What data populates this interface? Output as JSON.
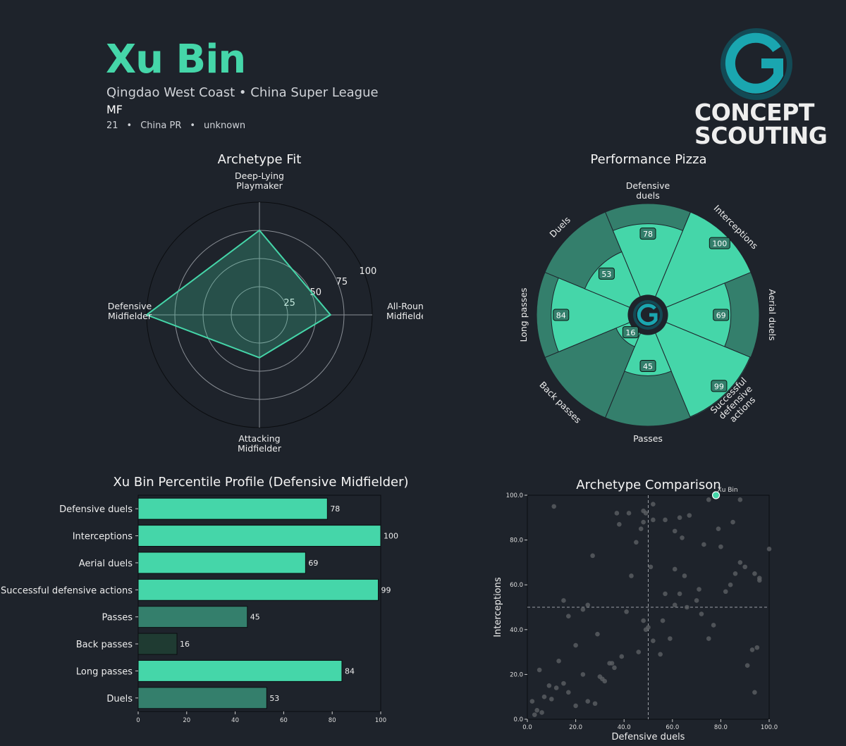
{
  "header": {
    "player_name": "Xu Bin",
    "club_league": "Qingdao West Coast • China Super League",
    "position": "MF",
    "age": "21",
    "nationality": "China PR",
    "foot": "unknown",
    "logo_line1": "CONCEPT",
    "logo_line2": "SCOUTING",
    "logo_icon": "concept-scouting-g-logo"
  },
  "colors": {
    "background": "#1e232b",
    "accent": "#45d6a9",
    "accent_dark": "#347f6c",
    "accent_darkest": "#1f3b32",
    "logo_teal": "#1aa6b0"
  },
  "chart_data": [
    {
      "type": "radar",
      "title": "Archetype Fit",
      "axes": [
        "Deep-Lying Playmaker",
        "All-Round Midfielder",
        "Attacking Midfielder",
        "Defensive Midfielder"
      ],
      "values": [
        75,
        63,
        38,
        100
      ],
      "rlim": [
        0,
        100
      ],
      "ring_ticks": [
        25,
        50,
        75,
        100
      ],
      "grid": true
    },
    {
      "type": "pie",
      "subtype": "pizza",
      "title": "Performance Pizza",
      "categories": [
        "Defensive duels",
        "Interceptions",
        "Aerial duels",
        "Successful defensive actions",
        "Passes",
        "Back passes",
        "Long passes",
        "Duels"
      ],
      "values": [
        78,
        100,
        69,
        99,
        45,
        16,
        84,
        53
      ]
    },
    {
      "type": "bar",
      "orientation": "horizontal",
      "title": "Xu Bin Percentile Profile (Defensive Midfielder)",
      "categories": [
        "Defensive duels",
        "Interceptions",
        "Aerial duels",
        "Successful defensive actions",
        "Passes",
        "Back passes",
        "Long passes",
        "Duels"
      ],
      "values": [
        78,
        100,
        69,
        99,
        45,
        16,
        84,
        53
      ],
      "xlim": [
        0,
        100
      ],
      "xticks": [
        "0",
        "20",
        "40",
        "60",
        "80",
        "100"
      ]
    },
    {
      "type": "scatter",
      "title": "Archetype Comparison",
      "xlabel": "Defensive duels",
      "ylabel": "Interceptions",
      "xlim": [
        0,
        100
      ],
      "ylim": [
        0,
        100
      ],
      "xticks": [
        "0.0",
        "20.0",
        "40.0",
        "60.0",
        "80.0",
        "100.0"
      ],
      "yticks": [
        "0.0",
        "20.0",
        "40.0",
        "60.0",
        "80.0",
        "100.0"
      ],
      "reference_lines": {
        "x": 50,
        "y": 50
      },
      "highlight": {
        "name": "Xu Bin",
        "x": 78,
        "y": 100
      },
      "points": [
        [
          11,
          95
        ],
        [
          27,
          73
        ],
        [
          37,
          92
        ],
        [
          38,
          87
        ],
        [
          42,
          92
        ],
        [
          49,
          92
        ],
        [
          48,
          88
        ],
        [
          48,
          93
        ],
        [
          52,
          96
        ],
        [
          52,
          89
        ],
        [
          57,
          89
        ],
        [
          63,
          90
        ],
        [
          61,
          84
        ],
        [
          64,
          81
        ],
        [
          67,
          91
        ],
        [
          75,
          98
        ],
        [
          79,
          85
        ],
        [
          80,
          77
        ],
        [
          85,
          88
        ],
        [
          88,
          98
        ],
        [
          94,
          65
        ],
        [
          96,
          62
        ],
        [
          100,
          76
        ],
        [
          15,
          53
        ],
        [
          17,
          46
        ],
        [
          20,
          33
        ],
        [
          23,
          49
        ],
        [
          25,
          51
        ],
        [
          29,
          38
        ],
        [
          36,
          23
        ],
        [
          39,
          28
        ],
        [
          41,
          48
        ],
        [
          43,
          64
        ],
        [
          45,
          79
        ],
        [
          47,
          85
        ],
        [
          49,
          40
        ],
        [
          50,
          41
        ],
        [
          51,
          68
        ],
        [
          52,
          35
        ],
        [
          55,
          29
        ],
        [
          56,
          44
        ],
        [
          57,
          56
        ],
        [
          59,
          36
        ],
        [
          61,
          67
        ],
        [
          63,
          56
        ],
        [
          65,
          64
        ],
        [
          66,
          50
        ],
        [
          70,
          53
        ],
        [
          71,
          58
        ],
        [
          72,
          47
        ],
        [
          73,
          78
        ],
        [
          75,
          36
        ],
        [
          77,
          42
        ],
        [
          82,
          57
        ],
        [
          84,
          60
        ],
        [
          86,
          65
        ],
        [
          88,
          70
        ],
        [
          90,
          68
        ],
        [
          93,
          31
        ],
        [
          95,
          32
        ],
        [
          96,
          63
        ],
        [
          91,
          24
        ],
        [
          94,
          12
        ],
        [
          2,
          8
        ],
        [
          3,
          2
        ],
        [
          4,
          4
        ],
        [
          5,
          22
        ],
        [
          6,
          3
        ],
        [
          7,
          10
        ],
        [
          9,
          15
        ],
        [
          10,
          9
        ],
        [
          12,
          14
        ],
        [
          13,
          26
        ],
        [
          15,
          16
        ],
        [
          17,
          12
        ],
        [
          20,
          6
        ],
        [
          23,
          20
        ],
        [
          25,
          8
        ],
        [
          28,
          7
        ],
        [
          31,
          18
        ],
        [
          32,
          17
        ],
        [
          34,
          25
        ],
        [
          35,
          25
        ],
        [
          30,
          19
        ],
        [
          46,
          30
        ],
        [
          48,
          44
        ],
        [
          61,
          51
        ]
      ]
    }
  ]
}
